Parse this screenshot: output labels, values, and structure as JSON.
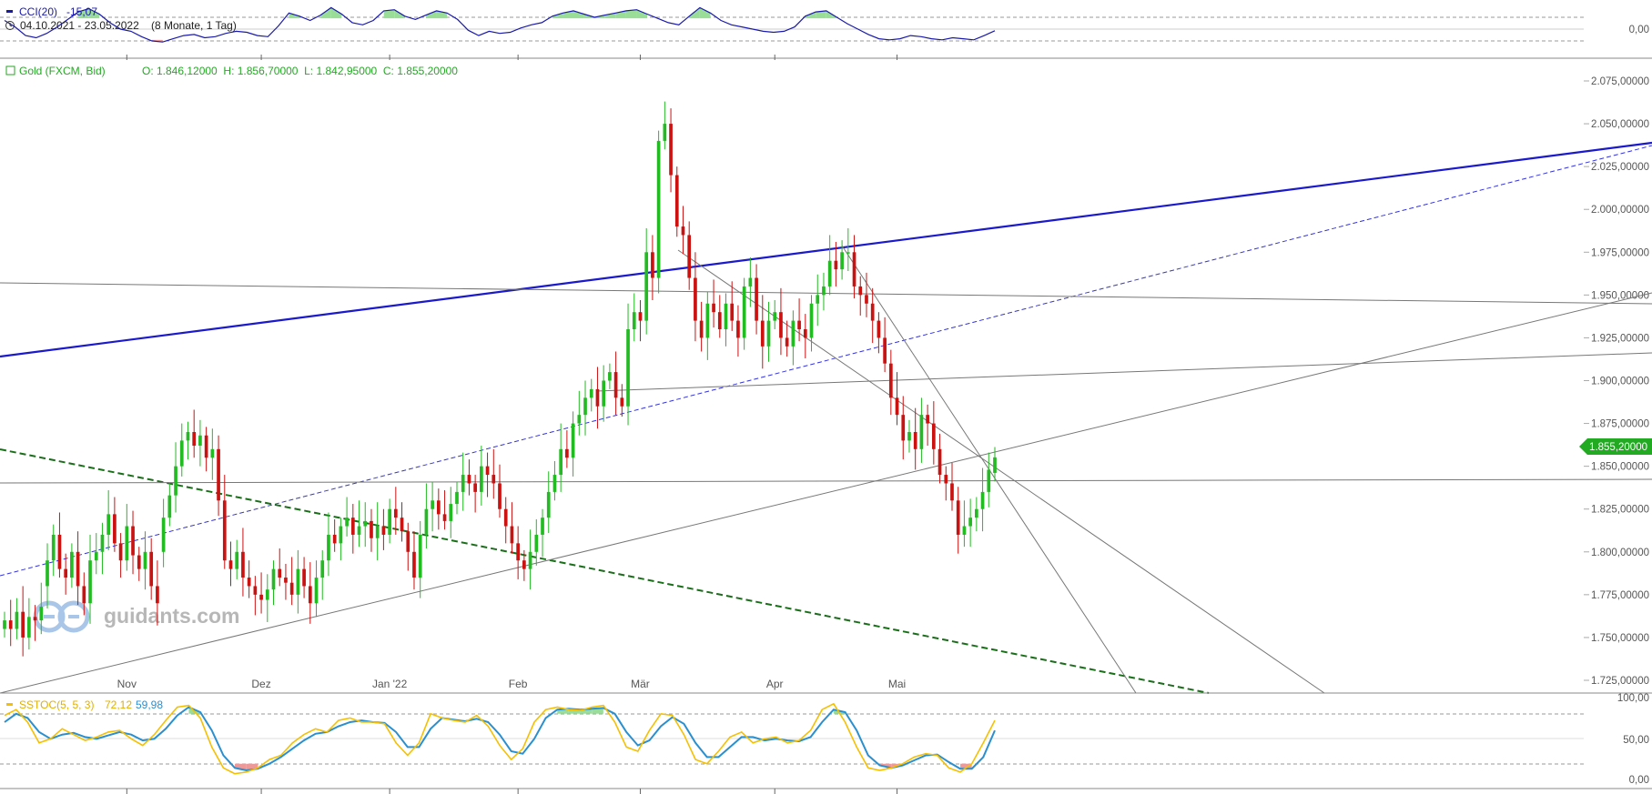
{
  "cci_panel": {
    "label": "CCI(20)",
    "value": "-15,07",
    "date_range": "04.10.2021 - 23.05.2022",
    "period": "(8 Monate, 1 Tag)",
    "zero_label": "0,00",
    "values": [
      80,
      20,
      -60,
      -80,
      -40,
      20,
      90,
      160,
      190,
      140,
      60,
      0,
      -20,
      -70,
      -110,
      -120,
      -90,
      -60,
      -50,
      -80,
      -70,
      -40,
      -20,
      -30,
      -60,
      -70,
      30,
      150,
      120,
      80,
      130,
      200,
      140,
      60,
      40,
      80,
      170,
      180,
      120,
      90,
      130,
      170,
      150,
      90,
      -10,
      -60,
      -20,
      -40,
      -30,
      10,
      40,
      60,
      120,
      150,
      170,
      140,
      110,
      130,
      150,
      170,
      180,
      140,
      100,
      60,
      40,
      120,
      200,
      150,
      80,
      40,
      20,
      0,
      -20,
      -30,
      -20,
      20,
      120,
      160,
      170,
      110,
      50,
      0,
      -50,
      -90,
      -100,
      -90,
      -60,
      -70,
      -90,
      -100,
      -80,
      -90,
      -100,
      -60,
      -15
    ]
  },
  "price_panel": {
    "instrument": "Gold (FXCM, Bid)",
    "ohlc": "O: 1.846,12000  H: 1.856,70000  L: 1.842,95000  C: 1.855,20000",
    "last_price_label": "1.855,20000",
    "y_ticks": [
      "2.075,00000",
      "2.050,00000",
      "2.025,00000",
      "2.000,00000",
      "1.975,00000",
      "1.950,00000",
      "1.925,00000",
      "1.900,00000",
      "1.875,00000",
      "1.850,00000",
      "1.825,00000",
      "1.800,00000",
      "1.775,00000",
      "1.750,00000",
      "1.725,00000"
    ],
    "month_labels": [
      "Nov",
      "Dez",
      "Jan '22",
      "Feb",
      "Mär",
      "Apr",
      "Mai"
    ],
    "watermark": "guidants.com",
    "colors": {
      "up": "#22bb22",
      "down": "#cc1111",
      "trend_blue": "#1a1acc",
      "trend_green_dashed": "#1a6e1a",
      "line_gray": "#777777"
    }
  },
  "stoch_panel": {
    "label": "SSTOC(5, 5, 3)",
    "k_value": "72,12",
    "d_value": "59,98",
    "y_ticks": [
      "100,00",
      "50,00",
      "0,00"
    ],
    "k_values": [
      78,
      85,
      70,
      45,
      50,
      62,
      55,
      48,
      52,
      58,
      60,
      50,
      42,
      55,
      72,
      88,
      90,
      75,
      40,
      15,
      8,
      10,
      15,
      25,
      30,
      45,
      55,
      62,
      58,
      72,
      75,
      70,
      70,
      68,
      45,
      30,
      45,
      80,
      75,
      72,
      70,
      78,
      65,
      42,
      25,
      38,
      70,
      85,
      88,
      85,
      84,
      88,
      90,
      70,
      40,
      35,
      60,
      80,
      78,
      55,
      25,
      20,
      35,
      52,
      58,
      45,
      50,
      52,
      45,
      48,
      60,
      85,
      92,
      70,
      40,
      15,
      12,
      15,
      20,
      28,
      32,
      30,
      15,
      10,
      20,
      45,
      72
    ],
    "d_values": [
      70,
      80,
      75,
      58,
      50,
      55,
      57,
      52,
      50,
      54,
      58,
      55,
      48,
      50,
      62,
      78,
      88,
      82,
      60,
      30,
      15,
      12,
      14,
      20,
      28,
      38,
      48,
      56,
      58,
      65,
      70,
      72,
      70,
      69,
      58,
      40,
      40,
      62,
      75,
      73,
      71,
      74,
      70,
      55,
      35,
      32,
      50,
      75,
      85,
      86,
      85,
      86,
      87,
      80,
      58,
      42,
      48,
      65,
      76,
      68,
      45,
      28,
      28,
      40,
      52,
      52,
      48,
      50,
      48,
      47,
      52,
      70,
      85,
      82,
      60,
      30,
      18,
      15,
      18,
      24,
      30,
      31,
      22,
      14,
      14,
      28,
      60
    ]
  },
  "chart_data": {
    "type": "candlestick",
    "title": "Gold (FXCM, Bid)",
    "x_range": [
      "04.10.2021",
      "23.05.2022"
    ],
    "ylim": [
      1715,
      2085
    ],
    "month_starts_index": [
      20,
      42,
      63,
      84,
      104,
      126,
      146
    ],
    "month_labels": [
      "Nov",
      "Dez",
      "Jan '22",
      "Feb",
      "Mär",
      "Apr",
      "Mai"
    ],
    "last": 1855.2,
    "closes": [
      1760,
      1755,
      1765,
      1750,
      1762,
      1760,
      1768,
      1795,
      1810,
      1790,
      1785,
      1800,
      1780,
      1770,
      1795,
      1800,
      1810,
      1822,
      1805,
      1795,
      1815,
      1798,
      1790,
      1800,
      1780,
      1770,
      1820,
      1833,
      1850,
      1865,
      1870,
      1862,
      1868,
      1855,
      1860,
      1830,
      1795,
      1790,
      1800,
      1785,
      1780,
      1775,
      1772,
      1778,
      1790,
      1785,
      1782,
      1775,
      1790,
      1780,
      1770,
      1785,
      1795,
      1810,
      1805,
      1815,
      1820,
      1810,
      1815,
      1818,
      1808,
      1815,
      1810,
      1825,
      1820,
      1812,
      1800,
      1785,
      1810,
      1825,
      1830,
      1822,
      1818,
      1828,
      1835,
      1845,
      1840,
      1835,
      1850,
      1845,
      1840,
      1825,
      1815,
      1805,
      1795,
      1790,
      1800,
      1810,
      1820,
      1835,
      1845,
      1860,
      1855,
      1875,
      1880,
      1890,
      1895,
      1885,
      1900,
      1905,
      1890,
      1885,
      1930,
      1940,
      1935,
      1975,
      1960,
      2040,
      2050,
      2020,
      1990,
      1985,
      1960,
      1935,
      1925,
      1945,
      1940,
      1930,
      1945,
      1935,
      1925,
      1955,
      1960,
      1935,
      1920,
      1935,
      1940,
      1925,
      1920,
      1935,
      1930,
      1925,
      1945,
      1950,
      1955,
      1970,
      1965,
      1975,
      1975,
      1955,
      1950,
      1945,
      1935,
      1925,
      1910,
      1890,
      1880,
      1865,
      1870,
      1860,
      1880,
      1875,
      1860,
      1845,
      1840,
      1830,
      1810,
      1815,
      1820,
      1825,
      1835,
      1848,
      1855.2
    ],
    "opens": [
      1755,
      1760,
      1755,
      1765,
      1750,
      1762,
      1760,
      1780,
      1795,
      1810,
      1790,
      1785,
      1800,
      1780,
      1770,
      1795,
      1800,
      1810,
      1822,
      1805,
      1795,
      1815,
      1798,
      1790,
      1800,
      1780,
      1800,
      1820,
      1833,
      1850,
      1865,
      1870,
      1862,
      1868,
      1855,
      1860,
      1830,
      1795,
      1790,
      1800,
      1785,
      1780,
      1775,
      1772,
      1778,
      1790,
      1785,
      1782,
      1775,
      1790,
      1780,
      1770,
      1785,
      1795,
      1810,
      1805,
      1815,
      1820,
      1810,
      1815,
      1818,
      1808,
      1815,
      1810,
      1825,
      1820,
      1812,
      1800,
      1785,
      1810,
      1825,
      1830,
      1822,
      1818,
      1828,
      1835,
      1845,
      1840,
      1835,
      1850,
      1845,
      1840,
      1825,
      1815,
      1805,
      1795,
      1790,
      1800,
      1810,
      1820,
      1835,
      1845,
      1860,
      1855,
      1875,
      1880,
      1890,
      1895,
      1885,
      1900,
      1905,
      1890,
      1885,
      1930,
      1940,
      1935,
      1975,
      1960,
      2040,
      2050,
      2020,
      1990,
      1985,
      1960,
      1935,
      1925,
      1945,
      1940,
      1930,
      1945,
      1935,
      1925,
      1955,
      1960,
      1935,
      1920,
      1935,
      1940,
      1925,
      1920,
      1935,
      1930,
      1925,
      1945,
      1950,
      1955,
      1970,
      1965,
      1975,
      1975,
      1955,
      1950,
      1945,
      1935,
      1925,
      1910,
      1890,
      1880,
      1865,
      1870,
      1860,
      1880,
      1875,
      1860,
      1845,
      1840,
      1830,
      1810,
      1815,
      1820,
      1825,
      1835,
      1846.12
    ],
    "series": [
      {
        "name": "Gold (FXCM, Bid)"
      }
    ]
  }
}
